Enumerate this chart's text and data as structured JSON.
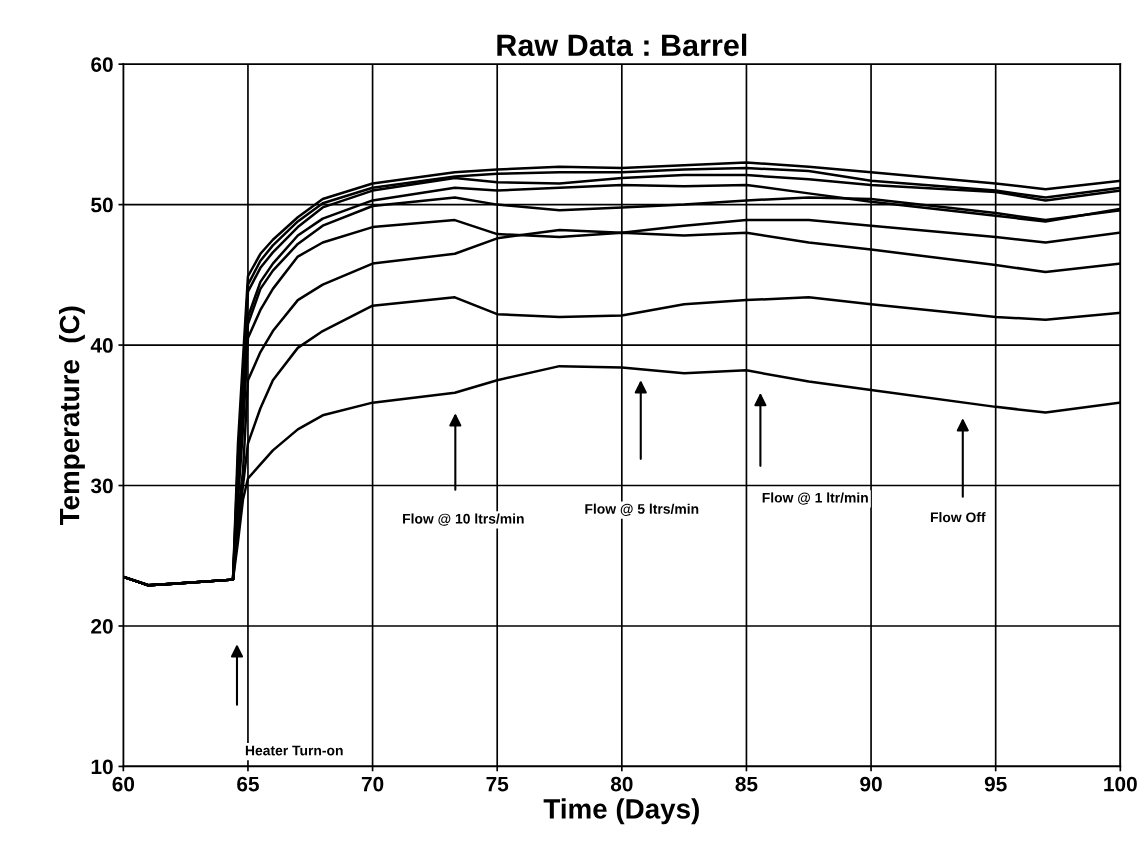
{
  "chart_data": {
    "type": "line",
    "title": "Raw Data : Barrel",
    "xlabel": "Time (Days)",
    "ylabel": "Temperature  (C)",
    "x": [
      60,
      61,
      62,
      64.4,
      64.6,
      64.8,
      65,
      65.5,
      66,
      67,
      68,
      70,
      73.3,
      75,
      77.5,
      80,
      82.5,
      85,
      87.5,
      90,
      95,
      97,
      100
    ],
    "series": [
      {
        "color": "#000000",
        "values": [
          23.5,
          22.9,
          23.0,
          23.3,
          33,
          39,
          44.9,
          46.5,
          47.5,
          49.1,
          50.4,
          51.5,
          52.3,
          52.5,
          52.7,
          52.6,
          52.8,
          53.0,
          52.7,
          52.3,
          51.5,
          51.1,
          51.7
        ]
      },
      {
        "color": "#000000",
        "values": [
          23.5,
          22.9,
          23.0,
          23.3,
          32,
          38,
          44.3,
          46.0,
          47.1,
          48.8,
          50.1,
          51.2,
          52.0,
          52.2,
          52.3,
          52.3,
          52.5,
          52.6,
          52.4,
          51.7,
          51.0,
          50.5,
          51.2
        ]
      },
      {
        "color": "#000000",
        "values": [
          23.5,
          22.9,
          23.0,
          23.3,
          31,
          37,
          43.8,
          45.5,
          46.6,
          48.4,
          49.8,
          51.0,
          51.9,
          51.6,
          51.5,
          51.9,
          52.1,
          52.1,
          51.8,
          51.4,
          50.9,
          50.3,
          51.0
        ]
      },
      {
        "color": "#000000",
        "values": [
          23.5,
          22.9,
          23.0,
          23.3,
          30,
          36,
          42,
          44.5,
          45.8,
          47.8,
          49.0,
          50.3,
          51.2,
          51.0,
          51.2,
          51.4,
          51.3,
          51.4,
          50.8,
          50.2,
          49.2,
          48.8,
          49.7
        ]
      },
      {
        "color": "#000000",
        "values": [
          23.5,
          22.9,
          23.0,
          23.3,
          30,
          35,
          41.5,
          44,
          45.3,
          47.2,
          48.5,
          49.9,
          50.5,
          50.0,
          49.6,
          49.8,
          50.0,
          50.3,
          50.5,
          50.4,
          49.4,
          48.9,
          49.6
        ]
      },
      {
        "color": "#000000",
        "values": [
          23.5,
          22.9,
          23.0,
          23.3,
          29,
          34,
          40.5,
          42.5,
          44,
          46.3,
          47.3,
          48.4,
          48.9,
          47.9,
          47.7,
          48.0,
          47.8,
          48.0,
          47.3,
          46.8,
          45.7,
          45.2,
          45.8
        ]
      },
      {
        "color": "#000000",
        "values": [
          23.5,
          22.9,
          23.0,
          23.3,
          28,
          31,
          37.5,
          39.5,
          41,
          43.2,
          44.3,
          45.8,
          46.5,
          47.6,
          48.2,
          48.0,
          48.5,
          48.9,
          48.9,
          48.5,
          47.7,
          47.3,
          48.0
        ]
      },
      {
        "color": "#000000",
        "values": [
          23.5,
          22.9,
          23.0,
          23.3,
          27,
          30,
          33,
          35.5,
          37.5,
          39.8,
          41.0,
          42.8,
          43.4,
          42.2,
          42.0,
          42.1,
          42.9,
          43.2,
          43.4,
          42.9,
          42.0,
          41.8,
          42.3
        ]
      },
      {
        "color": "#000000",
        "values": [
          23.5,
          22.9,
          23.0,
          23.3,
          26,
          29,
          30.5,
          31.5,
          32.5,
          34.0,
          35.0,
          35.9,
          36.6,
          37.5,
          38.5,
          38.4,
          38.0,
          38.2,
          37.4,
          36.8,
          35.6,
          35.2,
          35.9
        ]
      }
    ],
    "annotations": [
      "Heater Turn-on",
      "Flow @ 10 ltrs/min",
      "Flow @ 5 ltrs/min",
      "Flow @ 1 ltr/min",
      "Flow Off"
    ],
    "xlim": [
      60,
      100
    ],
    "xticks": [
      60,
      65,
      70,
      75,
      80,
      85,
      90,
      95,
      100
    ],
    "ylim": [
      10,
      60
    ],
    "yticks": [
      10,
      20,
      30,
      40,
      50,
      60
    ],
    "grid": true,
    "marker": "none",
    "line_style": "solid"
  }
}
